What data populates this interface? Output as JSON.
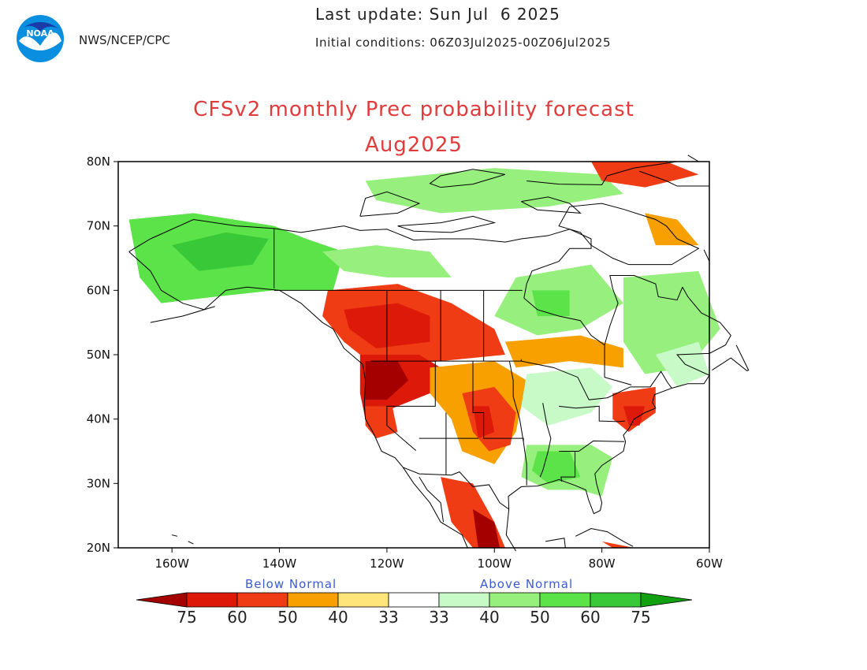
{
  "header": {
    "agency": "NWS/NCEP/CPC",
    "last_update": "Last update: Sun Jul  6 2025",
    "initial_conditions": "Initial conditions: 06Z03Jul2025-00Z06Jul2025",
    "logo_text": "NOAA"
  },
  "title": {
    "line1": "CFSv2 monthly Prec probability forecast",
    "line2": "Aug2025"
  },
  "map": {
    "lat_labels": [
      "80N",
      "70N",
      "60N",
      "50N",
      "40N",
      "30N",
      "20N"
    ],
    "lon_labels": [
      "160W",
      "140W",
      "120W",
      "100W",
      "80W",
      "60W"
    ],
    "lat_range": [
      20,
      80
    ],
    "lon_range": [
      -170,
      -60
    ],
    "border_color": "#000000"
  },
  "legend": {
    "below_label": "Below Normal",
    "above_label": "Above Normal",
    "numbers": [
      "75",
      "60",
      "50",
      "40",
      "33",
      "33",
      "40",
      "50",
      "60",
      "75"
    ],
    "colors": {
      "below_75": "#a50000",
      "below_60": "#dd1a0a",
      "below_50": "#f03c14",
      "below_40": "#f7a000",
      "below_33": "#ffe57a",
      "normal": "#ffffff",
      "above_33": "#c8fac8",
      "above_40": "#97f07e",
      "above_50": "#5ce34a",
      "above_60": "#38c838",
      "above_75": "#10a010"
    }
  },
  "regions": [
    {
      "name": "alaska",
      "category": "above_50"
    },
    {
      "name": "pacific-northwest",
      "category": "below_75"
    },
    {
      "name": "western-canada",
      "category": "below_50"
    },
    {
      "name": "central-plains",
      "category": "below_50"
    },
    {
      "name": "central-canada",
      "category": "above_40"
    },
    {
      "name": "southeast-us",
      "category": "above_50"
    },
    {
      "name": "northeast-us",
      "category": "below_50"
    },
    {
      "name": "mexico",
      "category": "below_60"
    },
    {
      "name": "arctic-islands",
      "category": "above_40"
    }
  ]
}
